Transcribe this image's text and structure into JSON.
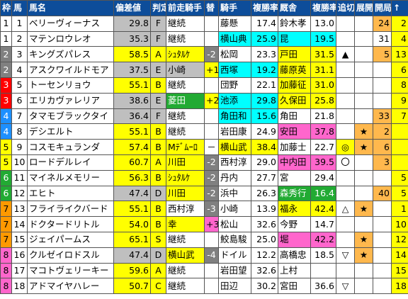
{
  "headers": [
    "枠",
    "馬",
    "馬名",
    "偏差値",
    "判定",
    "前走騎手",
    "替",
    "騎手",
    "複勝率",
    "厩舎",
    "複勝率",
    "追切",
    "展開",
    "開局",
    "↑"
  ],
  "colors": {
    "header_bg": "#0d4d9a",
    "header_text": "#ffffff",
    "waku": {
      "1": "#ffffff",
      "2": "#808080",
      "3": "#ff0000",
      "4": "#1e90ff",
      "5": "#ffff00",
      "6": "#22aa33",
      "7": "#ff9900",
      "8": "#ff66cc"
    },
    "hensachi_bg": "#bfbfbf",
    "yellow": "#ffff00",
    "cyan": "#00ffff",
    "orange": "#ffb84d",
    "gray_cell": "#bfbfbf",
    "pink": "#ff66cc"
  },
  "rows": [
    {
      "waku": "1",
      "uma": "1",
      "name": "ベリーヴィーナス",
      "hensa": "29.8",
      "hantei": "F",
      "zensou": "継続",
      "zensou_bg": "",
      "kawari": "",
      "kawari_bg": "",
      "kishu": "藤懸",
      "kishu_bg": "",
      "krate": "17.4",
      "krate_bg": "",
      "kyusha": "鈴木孝",
      "kyusha_bg": "",
      "kyrate": "13.0",
      "kyrate_bg": "",
      "oikiri": "",
      "oikiri_bg": "",
      "tenkai": "",
      "tenkai_bg": "",
      "kaikyoku": "24",
      "kaikyoku_bg": "#ffb84d",
      "up": "2",
      "up_bg": "#ffff00"
    },
    {
      "waku": "1",
      "uma": "2",
      "name": "マテンロウレオ",
      "hensa": "35.3",
      "hantei": "F",
      "zensou": "継続",
      "zensou_bg": "",
      "kawari": "",
      "kawari_bg": "",
      "kishu": "横山典",
      "kishu_bg": "#00ffff",
      "krate": "25.9",
      "krate_bg": "#00ffff",
      "kyusha": "昆",
      "kyusha_bg": "#00ffff",
      "kyrate": "19.5",
      "kyrate_bg": "#00ffff",
      "oikiri": "",
      "oikiri_bg": "",
      "tenkai": "",
      "tenkai_bg": "",
      "kaikyoku": "31",
      "kaikyoku_bg": "",
      "up": "4",
      "up_bg": "#ffff00"
    },
    {
      "waku": "2",
      "uma": "3",
      "name": "キングズパレス",
      "hensa": "58.5",
      "hantei": "A",
      "zensou": "ｼｭﾀﾙｹ",
      "zensou_bg": "#ffff00",
      "kawari": "-2",
      "kawari_bg": "#808080",
      "kishu": "松岡",
      "kishu_bg": "",
      "krate": "23.3",
      "krate_bg": "",
      "kyusha": "戸田",
      "kyusha_bg": "#ffff00",
      "kyrate": "31.5",
      "kyrate_bg": "#ffff00",
      "oikiri": "▲",
      "oikiri_bg": "",
      "tenkai": "",
      "tenkai_bg": "",
      "kaikyoku": "5",
      "kaikyoku_bg": "#ffb84d",
      "up": "13",
      "up_bg": "#ffff00"
    },
    {
      "waku": "2",
      "uma": "4",
      "name": "アスクワイルドモア",
      "hensa": "37.5",
      "hantei": "E",
      "zensou": "小崎",
      "zensou_bg": "#bfbfbf",
      "kawari": "+1",
      "kawari_bg": "#ffff00",
      "kishu": "西塚",
      "kishu_bg": "#00ffff",
      "krate": "19.2",
      "krate_bg": "#00ffff",
      "kyusha": "藤原英",
      "kyusha_bg": "#ffff00",
      "kyrate": "31.1",
      "kyrate_bg": "#ffff00",
      "oikiri": "",
      "oikiri_bg": "",
      "tenkai": "",
      "tenkai_bg": "",
      "kaikyoku": "",
      "kaikyoku_bg": "",
      "up": "6",
      "up_bg": "#ffff00"
    },
    {
      "waku": "3",
      "uma": "5",
      "name": "トーセンリョウ",
      "hensa": "55.1",
      "hantei": "B",
      "zensou": "継続",
      "zensou_bg": "",
      "kawari": "",
      "kawari_bg": "",
      "kishu": "団野",
      "kishu_bg": "",
      "krate": "22.1",
      "krate_bg": "",
      "kyusha": "加藤征",
      "kyusha_bg": "#ffff00",
      "kyrate": "31.0",
      "kyrate_bg": "#ffff00",
      "oikiri": "",
      "oikiri_bg": "",
      "tenkai": "",
      "tenkai_bg": "",
      "kaikyoku": "",
      "kaikyoku_bg": "",
      "up": "8",
      "up_bg": "#ffff00"
    },
    {
      "waku": "3",
      "uma": "6",
      "name": "エリカヴァレリア",
      "hensa": "38.6",
      "hantei": "E",
      "zensou": "菱田",
      "zensou_bg": "#22aa33",
      "kawari": "+2",
      "kawari_bg": "#ffff00",
      "kishu": "池添",
      "kishu_bg": "#00ffff",
      "krate": "29.8",
      "krate_bg": "#00ffff",
      "kyusha": "久保田",
      "kyusha_bg": "#ffff00",
      "kyrate": "25.8",
      "kyrate_bg": "#ffff00",
      "oikiri": "",
      "oikiri_bg": "",
      "tenkai": "",
      "tenkai_bg": "",
      "kaikyoku": "",
      "kaikyoku_bg": "",
      "up": "9",
      "up_bg": "#ffff00"
    },
    {
      "waku": "4",
      "uma": "7",
      "name": "タマモブラックタイ",
      "hensa": "36.4",
      "hantei": "F",
      "zensou": "継続",
      "zensou_bg": "",
      "kawari": "",
      "kawari_bg": "",
      "kishu": "角田和",
      "kishu_bg": "#00ffff",
      "krate": "15.6",
      "krate_bg": "#00ffff",
      "kyusha": "角田",
      "kyusha_bg": "",
      "kyrate": "21.8",
      "kyrate_bg": "",
      "oikiri": "",
      "oikiri_bg": "",
      "tenkai": "",
      "tenkai_bg": "",
      "kaikyoku": "33",
      "kaikyoku_bg": "#ffb84d",
      "up": "7",
      "up_bg": "#ffff00"
    },
    {
      "waku": "4",
      "uma": "8",
      "name": "デシエルト",
      "hensa": "55.1",
      "hantei": "B",
      "zensou": "継続",
      "zensou_bg": "",
      "kawari": "",
      "kawari_bg": "",
      "kishu": "岩田康",
      "kishu_bg": "",
      "krate": "24.9",
      "krate_bg": "",
      "kyusha": "安田",
      "kyusha_bg": "#ff66cc",
      "kyrate": "37.8",
      "kyrate_bg": "#ff66cc",
      "oikiri": "",
      "oikiri_bg": "",
      "tenkai": "★",
      "tenkai_bg": "#ffb84d",
      "kaikyoku": "2",
      "kaikyoku_bg": "#ffb84d",
      "up": "",
      "up_bg": "#ffff00"
    },
    {
      "waku": "5",
      "uma": "9",
      "name": "コスモキュランダ",
      "hensa": "57.4",
      "hantei": "B",
      "zensou": "Mﾃﾞﾑｰﾛ",
      "zensou_bg": "#ffff00",
      "kawari": "－",
      "kawari_bg": "",
      "kishu": "横山武",
      "kishu_bg": "#ffff00",
      "krate": "38.4",
      "krate_bg": "#ffff00",
      "kyusha": "加藤士",
      "kyusha_bg": "",
      "kyrate": "22.7",
      "kyrate_bg": "",
      "oikiri": "◎",
      "oikiri_bg": "#ffff00",
      "tenkai": "★",
      "tenkai_bg": "#ffb84d",
      "kaikyoku": "6",
      "kaikyoku_bg": "#ffb84d",
      "up": "",
      "up_bg": "#ffff00"
    },
    {
      "waku": "5",
      "uma": "10",
      "name": "ロードデルレイ",
      "hensa": "60.7",
      "hantei": "A",
      "zensou": "川田",
      "zensou_bg": "#ffff00",
      "kawari": "-2",
      "kawari_bg": "#808080",
      "kishu": "西村淳",
      "kishu_bg": "",
      "krate": "29.0",
      "krate_bg": "",
      "kyusha": "中内田",
      "kyusha_bg": "#ff66cc",
      "kyrate": "39.5",
      "kyrate_bg": "#ff66cc",
      "oikiri": "〇",
      "oikiri_bg": "",
      "tenkai": "",
      "tenkai_bg": "",
      "kaikyoku": "3",
      "kaikyoku_bg": "#ffb84d",
      "up": "",
      "up_bg": "#ffff00"
    },
    {
      "waku": "6",
      "uma": "11",
      "name": "マイネルメモリー",
      "hensa": "56.3",
      "hantei": "B",
      "zensou": "ｼｭﾀﾙｹ",
      "zensou_bg": "#ffff00",
      "kawari": "-2",
      "kawari_bg": "#808080",
      "kishu": "丹内",
      "kishu_bg": "",
      "krate": "27.7",
      "krate_bg": "",
      "kyusha": "宮",
      "kyusha_bg": "",
      "kyrate": "29.4",
      "kyrate_bg": "",
      "oikiri": "",
      "oikiri_bg": "",
      "tenkai": "",
      "tenkai_bg": "",
      "kaikyoku": "",
      "kaikyoku_bg": "",
      "up": "5",
      "up_bg": "#ffff00"
    },
    {
      "waku": "6",
      "uma": "12",
      "name": "エヒト",
      "hensa": "47.4",
      "hantei": "D",
      "zensou": "川田",
      "zensou_bg": "#ffff00",
      "kawari": "-2",
      "kawari_bg": "#808080",
      "kishu": "浜中",
      "kishu_bg": "",
      "krate": "26.3",
      "krate_bg": "",
      "kyusha": "森秀行",
      "kyusha_bg": "#22aa33",
      "kyrate": "16.4",
      "kyrate_bg": "#22aa33",
      "oikiri": "",
      "oikiri_bg": "",
      "tenkai": "",
      "tenkai_bg": "",
      "kaikyoku": "40",
      "kaikyoku_bg": "#ffb84d",
      "up": "5",
      "up_bg": "#ffff00"
    },
    {
      "waku": "7",
      "uma": "13",
      "name": "フライライクバード",
      "hensa": "55.1",
      "hantei": "B",
      "zensou": "西村淳",
      "zensou_bg": "",
      "kawari": "-3",
      "kawari_bg": "#808080",
      "kishu": "小崎",
      "kishu_bg": "",
      "krate": "13.9",
      "krate_bg": "",
      "kyusha": "福永",
      "kyusha_bg": "#ffff00",
      "kyrate": "42.4",
      "kyrate_bg": "#ffff00",
      "oikiri": "△",
      "oikiri_bg": "",
      "tenkai": "★",
      "tenkai_bg": "#ffb84d",
      "kaikyoku": "",
      "kaikyoku_bg": "",
      "up": "1",
      "up_bg": "#ffff00"
    },
    {
      "waku": "7",
      "uma": "14",
      "name": "ドクタードリトル",
      "hensa": "54.0",
      "hantei": "B",
      "zensou": "幸",
      "zensou_bg": "#ffff00",
      "kawari": "+3",
      "kawari_bg": "#ff66cc",
      "kishu": "松山",
      "kishu_bg": "",
      "krate": "32.6",
      "krate_bg": "",
      "kyusha": "今野",
      "kyusha_bg": "",
      "kyrate": "14.7",
      "kyrate_bg": "",
      "oikiri": "",
      "oikiri_bg": "",
      "tenkai": "",
      "tenkai_bg": "",
      "kaikyoku": "",
      "kaikyoku_bg": "",
      "up": "10",
      "up_bg": "#ffff00"
    },
    {
      "waku": "7",
      "uma": "15",
      "name": "ジェイパームス",
      "hensa": "65.1",
      "hantei": "S",
      "zensou": "継続",
      "zensou_bg": "",
      "kawari": "",
      "kawari_bg": "",
      "kishu": "鮫島駿",
      "kishu_bg": "",
      "krate": "25.0",
      "krate_bg": "",
      "kyusha": "堀",
      "kyusha_bg": "#ff66cc",
      "kyrate": "42.2",
      "kyrate_bg": "#ff66cc",
      "oikiri": "",
      "oikiri_bg": "",
      "tenkai": "★",
      "tenkai_bg": "#ffb84d",
      "kaikyoku": "",
      "kaikyoku_bg": "",
      "up": "12",
      "up_bg": "#ffff00"
    },
    {
      "waku": "8",
      "uma": "16",
      "name": "クルゼイロドスル",
      "hensa": "47.4",
      "hantei": "D",
      "zensou": "横山武",
      "zensou_bg": "#ffff00",
      "kawari": "-4",
      "kawari_bg": "#808080",
      "kishu": "ドイル",
      "kishu_bg": "",
      "krate": "12.2",
      "krate_bg": "",
      "kyusha": "高橋忠",
      "kyusha_bg": "",
      "kyrate": "18.5",
      "kyrate_bg": "",
      "oikiri": "▽",
      "oikiri_bg": "",
      "tenkai": "★",
      "tenkai_bg": "#ffb84d",
      "kaikyoku": "",
      "kaikyoku_bg": "",
      "up": "14",
      "up_bg": "#ffff00"
    },
    {
      "waku": "8",
      "uma": "17",
      "name": "マコトヴェリーキー",
      "hensa": "59.6",
      "hantei": "A",
      "zensou": "継続",
      "zensou_bg": "",
      "kawari": "",
      "kawari_bg": "",
      "kishu": "岩田望",
      "kishu_bg": "",
      "krate": "32.6",
      "krate_bg": "",
      "kyusha": "上村",
      "kyusha_bg": "",
      "kyrate": "",
      "kyrate_bg": "",
      "oikiri": "",
      "oikiri_bg": "",
      "tenkai": "",
      "tenkai_bg": "",
      "kaikyoku": "",
      "kaikyoku_bg": "",
      "up": "15",
      "up_bg": "#ffff00"
    },
    {
      "waku": "8",
      "uma": "18",
      "name": "アドマイヤハレー",
      "hensa": "50.7",
      "hantei": "C",
      "zensou": "継続",
      "zensou_bg": "",
      "kawari": "",
      "kawari_bg": "",
      "kishu": "田辺",
      "kishu_bg": "",
      "krate": "30.2",
      "krate_bg": "",
      "kyusha": "宮田",
      "kyusha_bg": "",
      "kyrate": "36.6",
      "kyrate_bg": "",
      "oikiri": "▽",
      "oikiri_bg": "",
      "tenkai": "",
      "tenkai_bg": "",
      "kaikyoku": "",
      "kaikyoku_bg": "",
      "up": "18",
      "up_bg": "#ffff00"
    }
  ]
}
